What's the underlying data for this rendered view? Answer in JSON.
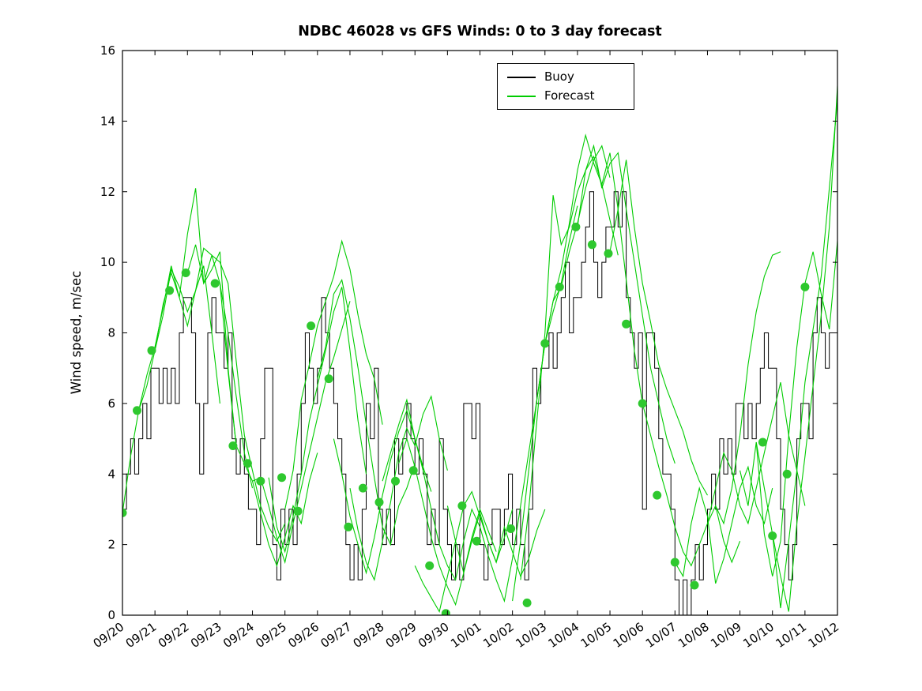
{
  "chart_data": {
    "type": "line",
    "title": "NDBC 46028 vs GFS Winds: 0 to 3 day forecast",
    "xlabel": "",
    "ylabel": "Wind speed, m/sec",
    "grid": false,
    "xlim": [
      0,
      22
    ],
    "ylim": [
      0,
      16
    ],
    "x_unit": "days since 09/20",
    "y_ticks": [
      0,
      2,
      4,
      6,
      8,
      10,
      12,
      14,
      16
    ],
    "x_tick_labels": [
      "09/20",
      "09/21",
      "09/22",
      "09/23",
      "09/24",
      "09/25",
      "09/26",
      "09/27",
      "09/28",
      "09/29",
      "09/30",
      "10/01",
      "10/02",
      "10/03",
      "10/04",
      "10/05",
      "10/06",
      "10/07",
      "10/08",
      "10/09",
      "10/10",
      "10/11",
      "10/12"
    ],
    "legend": {
      "position": "top-center",
      "entries": [
        {
          "label": "Buoy",
          "color": "#000000"
        },
        {
          "label": "Forecast",
          "color": "#00CC00"
        }
      ]
    },
    "buoy": {
      "color": "#000000",
      "line_style": "step",
      "x_start": 0,
      "x_step": 0.125,
      "values": [
        3,
        4,
        5,
        4,
        5,
        6,
        5,
        7,
        7,
        6,
        7,
        6,
        7,
        6,
        8,
        9,
        9,
        8,
        6,
        4,
        6,
        8,
        9,
        8,
        8,
        7,
        8,
        5,
        4,
        5,
        4,
        3,
        3,
        2,
        5,
        7,
        7,
        2,
        1,
        3,
        2,
        3,
        2,
        4,
        6,
        8,
        7,
        6,
        7,
        9,
        8,
        7,
        6,
        5,
        4,
        2,
        1,
        2,
        1,
        3,
        6,
        5,
        7,
        3,
        2,
        3,
        2,
        5,
        4,
        5,
        6,
        5,
        4,
        5,
        4,
        2,
        3,
        2,
        5,
        3,
        2,
        1,
        2,
        1,
        6,
        6,
        5,
        6,
        2,
        1,
        2,
        3,
        3,
        2,
        3,
        4,
        2,
        3,
        2,
        1,
        3,
        7,
        6,
        7,
        7,
        8,
        7,
        8,
        9,
        10,
        8,
        9,
        9,
        10,
        11,
        12,
        10,
        9,
        10,
        11,
        11,
        12,
        11,
        12,
        9,
        8,
        7,
        8,
        3,
        8,
        8,
        7,
        5,
        4,
        4,
        3,
        1,
        0,
        1,
        0,
        1,
        2,
        1,
        2,
        3,
        4,
        3,
        5,
        4,
        5,
        4,
        6,
        6,
        5,
        6,
        5,
        6,
        7,
        8,
        7,
        7,
        5,
        3,
        2,
        1,
        2,
        5,
        6,
        6,
        5,
        8,
        9,
        8,
        7,
        8,
        8,
        7
      ]
    },
    "forecast_color": "#00CC00",
    "forecast_runs": [
      {
        "x0": 0.0,
        "dt": 0.25,
        "v": [
          2.9,
          4.5,
          5.8,
          6.5,
          7.5,
          8.5,
          9.8,
          9.3,
          8.6,
          9.2,
          9.9,
          8.0,
          6.0
        ]
      },
      {
        "x0": 0.5,
        "dt": 0.25,
        "v": [
          5.8,
          6.8,
          7.6,
          8.7,
          9.9,
          9.0,
          10.8,
          12.1,
          9.4,
          9.8,
          10.3,
          7.0,
          4.8
        ]
      },
      {
        "x0": 1.0,
        "dt": 0.25,
        "v": [
          7.5,
          8.8,
          9.7,
          9.0,
          8.2,
          9.2,
          10.4,
          10.2,
          9.4,
          8.0,
          6.2,
          4.6,
          3.6
        ]
      },
      {
        "x0": 2.0,
        "dt": 0.25,
        "v": [
          9.7,
          10.5,
          9.4,
          10.2,
          10.0,
          9.4,
          7.2,
          5.1,
          4.1,
          3.1,
          2.5,
          2.1,
          2.6
        ]
      },
      {
        "x0": 3.0,
        "dt": 0.25,
        "v": [
          9.4,
          6.9,
          4.8,
          4.3,
          3.8,
          2.9,
          2.0,
          1.4,
          2.2,
          3.1,
          2.6,
          3.8,
          4.6
        ]
      },
      {
        "x0": 4.0,
        "dt": 0.25,
        "v": [
          3.8,
          3.9,
          3.1,
          2.2,
          1.5,
          2.6,
          3.6,
          4.6,
          5.6,
          6.6,
          7.3,
          8.1,
          8.9
        ]
      },
      {
        "x0": 4.5,
        "dt": 0.25,
        "v": [
          3.9,
          2.5,
          1.8,
          2.8,
          4.0,
          5.5,
          6.5,
          7.5,
          8.6,
          9.3,
          7.5,
          5.5,
          4.0
        ]
      },
      {
        "x0": 5.0,
        "dt": 0.25,
        "v": [
          3.0,
          4.1,
          6.1,
          7.1,
          8.2,
          8.9,
          9.6,
          10.6,
          9.8,
          8.5,
          7.4,
          6.7,
          5.4
        ]
      },
      {
        "x0": 6.0,
        "dt": 0.25,
        "v": [
          6.7,
          7.6,
          9.1,
          9.5,
          8.4,
          7.0,
          5.4,
          3.9,
          2.5,
          2.0,
          3.1,
          3.6,
          4.3
        ]
      },
      {
        "x0": 6.5,
        "dt": 0.25,
        "v": [
          5.0,
          4.0,
          2.8,
          2.0,
          1.2,
          2.2,
          3.4,
          4.4,
          5.2,
          5.8,
          5.0,
          4.2,
          3.5
        ]
      },
      {
        "x0": 7.0,
        "dt": 0.25,
        "v": [
          3.6,
          2.4,
          1.5,
          1.0,
          2.1,
          3.2,
          4.6,
          5.3,
          4.8,
          5.7,
          6.2,
          5.0,
          4.1
        ]
      },
      {
        "x0": 8.0,
        "dt": 0.25,
        "v": [
          3.8,
          4.6,
          5.4,
          6.1,
          5.0,
          4.1,
          3.0,
          2.0,
          1.4,
          1.0,
          2.1,
          3.0,
          2.5
        ]
      },
      {
        "x0": 8.5,
        "dt": 0.25,
        "v": [
          4.3,
          5.0,
          4.2,
          3.2,
          2.2,
          1.4,
          0.8,
          0.3,
          1.2,
          2.2,
          3.0,
          2.4,
          1.8
        ]
      },
      {
        "x0": 9.0,
        "dt": 0.25,
        "v": [
          1.4,
          0.9,
          0.5,
          0.1,
          1.1,
          2.1,
          3.1,
          3.5,
          2.8,
          2.1,
          1.5,
          2.2,
          3.0
        ]
      },
      {
        "x0": 10.0,
        "dt": 0.25,
        "v": [
          3.1,
          2.1,
          1.2,
          2.1,
          2.9,
          2.1,
          1.5,
          2.5,
          1.8,
          1.1,
          1.6,
          2.4,
          3.0
        ]
      },
      {
        "x0": 11.0,
        "dt": 0.25,
        "v": [
          2.5,
          1.7,
          1.0,
          0.4,
          1.6,
          3.1,
          4.6,
          6.1,
          7.7,
          8.6,
          9.4,
          10.6,
          11.6
        ]
      },
      {
        "x0": 12.0,
        "dt": 0.25,
        "v": [
          0.4,
          2.1,
          4.1,
          6.1,
          7.7,
          8.9,
          9.3,
          10.3,
          11.1,
          12.1,
          12.9,
          13.3,
          12.4
        ]
      },
      {
        "x0": 12.25,
        "dt": 0.25,
        "v": [
          1.0,
          3.0,
          5.5,
          8.0,
          11.9,
          10.5,
          11.0,
          12.0,
          12.6,
          13.0,
          12.2,
          11.2,
          10.2
        ]
      },
      {
        "x0": 13.0,
        "dt": 0.25,
        "v": [
          7.7,
          8.9,
          9.8,
          11.1,
          12.6,
          13.6,
          12.8,
          12.2,
          13.1,
          11.5,
          9.5,
          7.5,
          6.0
        ]
      },
      {
        "x0": 14.0,
        "dt": 0.25,
        "v": [
          11.0,
          12.6,
          13.3,
          12.1,
          12.8,
          13.1,
          11.5,
          10.0,
          8.5,
          7.0,
          6.0,
          5.0,
          4.3
        ]
      },
      {
        "x0": 15.0,
        "dt": 0.25,
        "v": [
          10.3,
          11.5,
          12.9,
          11.0,
          9.4,
          8.3,
          7.1,
          6.4,
          5.8,
          5.2,
          4.4,
          3.8,
          3.4
        ]
      },
      {
        "x0": 16.0,
        "dt": 0.25,
        "v": [
          6.0,
          5.1,
          4.2,
          3.4,
          2.5,
          1.8,
          1.4,
          2.0,
          2.6,
          3.1,
          2.1,
          1.5,
          2.1
        ]
      },
      {
        "x0": 17.0,
        "dt": 0.25,
        "v": [
          1.5,
          1.1,
          2.6,
          3.6,
          2.8,
          0.9,
          1.6,
          2.6,
          3.6,
          4.2,
          3.1,
          2.6,
          3.6
        ]
      },
      {
        "x0": 18.0,
        "dt": 0.25,
        "v": [
          2.6,
          3.6,
          4.6,
          4.1,
          3.1,
          2.6,
          3.6,
          4.6,
          5.6,
          6.6,
          5.1,
          4.1,
          3.1
        ]
      },
      {
        "x0": 18.25,
        "dt": 0.25,
        "v": [
          3.1,
          2.6,
          3.6,
          5.1,
          7.1,
          8.6,
          9.6,
          10.2,
          10.3
        ]
      },
      {
        "x0": 19.0,
        "dt": 0.25,
        "v": [
          4.1,
          3.1,
          4.9,
          3.6,
          2.3,
          0.2,
          2.1,
          4.1,
          6.6,
          8.1,
          9.6,
          12.1,
          14.6
        ]
      },
      {
        "x0": 19.5,
        "dt": 0.25,
        "v": [
          4.9,
          2.3,
          1.1,
          2.1,
          5.1,
          7.6,
          9.4,
          10.3,
          9.1,
          8.1,
          10.6,
          13.1,
          15.0
        ]
      },
      {
        "x0": 20.0,
        "dt": 0.25,
        "v": [
          2.3,
          1.1,
          0.1,
          2.6,
          4.5,
          6.5,
          8.5,
          11.0,
          15.0
        ]
      }
    ],
    "forecast_markers": {
      "color": "#2EC82E",
      "points": [
        [
          0.0,
          2.9
        ],
        [
          0.45,
          5.8
        ],
        [
          0.9,
          7.5
        ],
        [
          1.45,
          9.2
        ],
        [
          1.95,
          9.7
        ],
        [
          2.85,
          9.4
        ],
        [
          3.4,
          4.8
        ],
        [
          3.85,
          4.3
        ],
        [
          4.25,
          3.8
        ],
        [
          4.9,
          3.9
        ],
        [
          5.4,
          2.95
        ],
        [
          5.8,
          8.2
        ],
        [
          6.35,
          6.7
        ],
        [
          6.95,
          2.5
        ],
        [
          7.4,
          3.6
        ],
        [
          7.9,
          3.2
        ],
        [
          8.4,
          3.8
        ],
        [
          8.95,
          4.1
        ],
        [
          9.45,
          1.4
        ],
        [
          9.95,
          0.05
        ],
        [
          10.45,
          3.1
        ],
        [
          10.9,
          2.1
        ],
        [
          11.95,
          2.45
        ],
        [
          12.45,
          0.35
        ],
        [
          13.0,
          7.7
        ],
        [
          13.45,
          9.3
        ],
        [
          13.95,
          11.0
        ],
        [
          14.45,
          10.5
        ],
        [
          14.95,
          10.25
        ],
        [
          15.5,
          8.25
        ],
        [
          16.0,
          6.0
        ],
        [
          16.45,
          3.4
        ],
        [
          17.0,
          1.5
        ],
        [
          17.6,
          0.85
        ],
        [
          19.7,
          4.9
        ],
        [
          20.0,
          2.25
        ],
        [
          20.45,
          4.0
        ],
        [
          21.0,
          9.3
        ]
      ]
    }
  }
}
